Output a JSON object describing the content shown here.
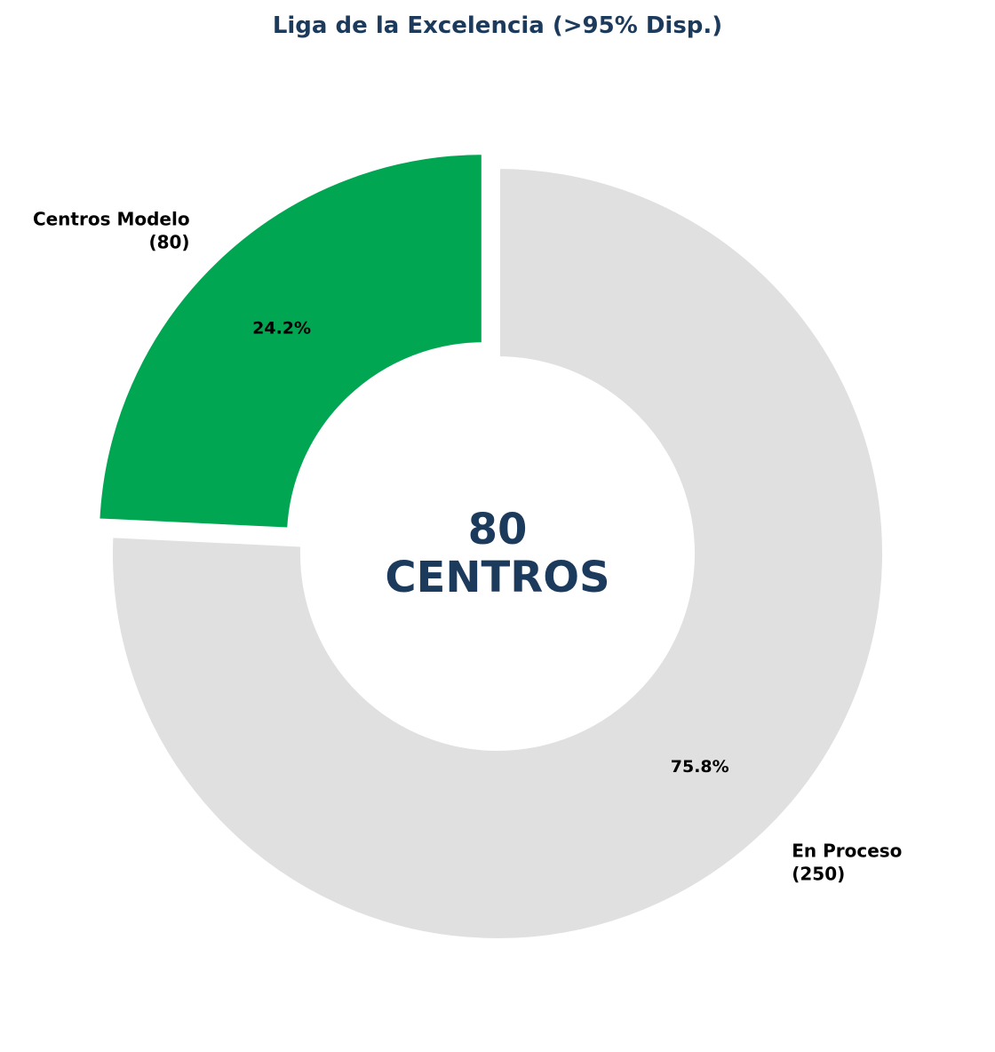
{
  "chart_data": {
    "type": "pie",
    "variant": "donut",
    "title": "Liga de la Excelencia (>95% Disp.)",
    "slices": [
      {
        "label_lines": [
          "Centros Modelo",
          "(80)"
        ],
        "value": 80,
        "percent_label": "24.2%",
        "color": "#00a651",
        "exploded": true
      },
      {
        "label_lines": [
          "En Proceso",
          "(250)"
        ],
        "value": 250,
        "percent_label": "75.8%",
        "color": "#e0e0e0",
        "exploded": false
      }
    ],
    "start_angle_deg": 90,
    "direction": "counterclockwise",
    "center_text": {
      "line1": "80",
      "line2": "CENTROS"
    },
    "colors": {
      "title": "#1b3a5c",
      "center_text": "#1b3a5c",
      "edge": "#ffffff"
    }
  }
}
